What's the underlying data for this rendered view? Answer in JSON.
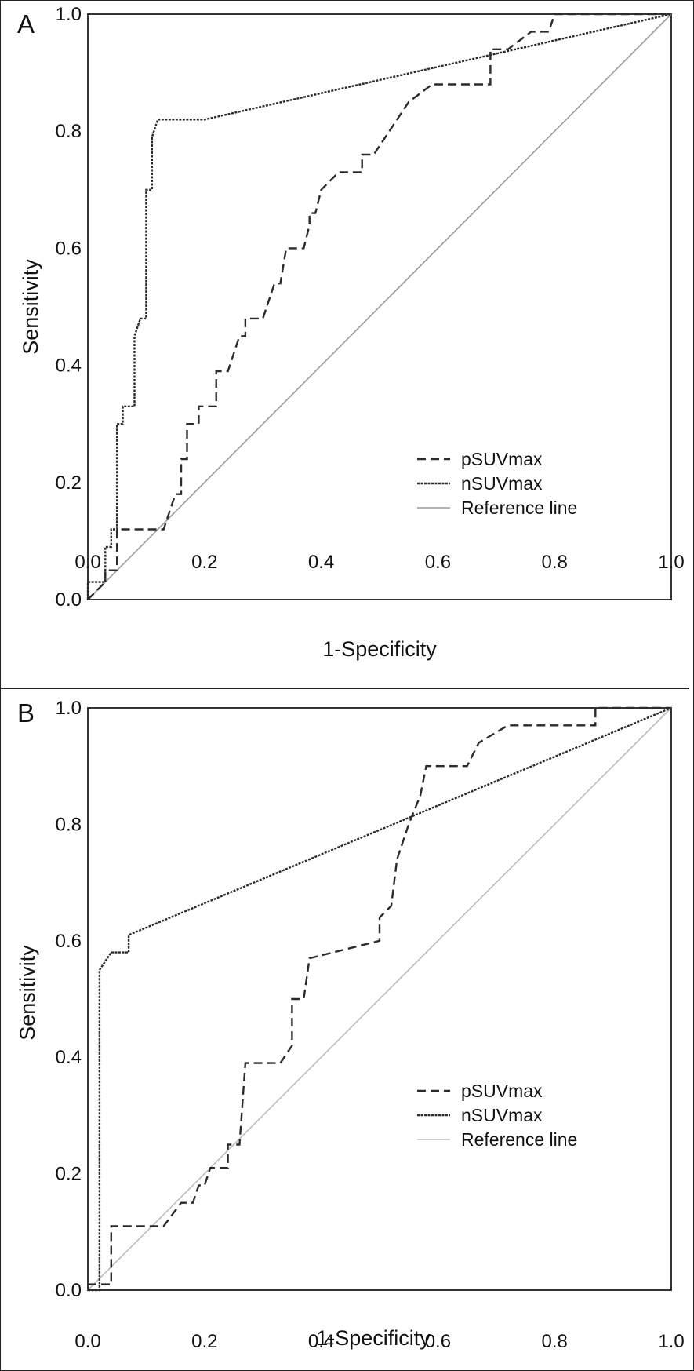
{
  "chart_data": [
    {
      "panel": "A",
      "type": "line",
      "xlabel": "1-Specificity",
      "ylabel": "Sensitivity",
      "xlim": [
        0,
        1
      ],
      "ylim": [
        0,
        1
      ],
      "xticks": [
        "0.0",
        "0.2",
        "0.4",
        "0.6",
        "0.8",
        "1.0"
      ],
      "yticks": [
        "0.0",
        "0.2",
        "0.4",
        "0.6",
        "0.8",
        "1.0"
      ],
      "legend_position": "bottom-right",
      "series": [
        {
          "name": "pSUVmax",
          "style": "dashed",
          "color": "#2b2b2b",
          "points": [
            [
              0,
              0
            ],
            [
              0.03,
              0.03
            ],
            [
              0.03,
              0.05
            ],
            [
              0.05,
              0.05
            ],
            [
              0.05,
              0.12
            ],
            [
              0.13,
              0.12
            ],
            [
              0.15,
              0.18
            ],
            [
              0.16,
              0.18
            ],
            [
              0.16,
              0.24
            ],
            [
              0.17,
              0.24
            ],
            [
              0.17,
              0.3
            ],
            [
              0.19,
              0.3
            ],
            [
              0.19,
              0.33
            ],
            [
              0.22,
              0.33
            ],
            [
              0.22,
              0.39
            ],
            [
              0.24,
              0.39
            ],
            [
              0.26,
              0.45
            ],
            [
              0.27,
              0.45
            ],
            [
              0.27,
              0.48
            ],
            [
              0.3,
              0.48
            ],
            [
              0.32,
              0.54
            ],
            [
              0.33,
              0.54
            ],
            [
              0.34,
              0.6
            ],
            [
              0.37,
              0.6
            ],
            [
              0.38,
              0.64
            ],
            [
              0.38,
              0.66
            ],
            [
              0.39,
              0.66
            ],
            [
              0.4,
              0.7
            ],
            [
              0.43,
              0.73
            ],
            [
              0.47,
              0.73
            ],
            [
              0.47,
              0.76
            ],
            [
              0.49,
              0.76
            ],
            [
              0.55,
              0.85
            ],
            [
              0.59,
              0.88
            ],
            [
              0.69,
              0.88
            ],
            [
              0.69,
              0.94
            ],
            [
              0.72,
              0.94
            ],
            [
              0.76,
              0.97
            ],
            [
              0.79,
              0.97
            ],
            [
              0.8,
              1.0
            ],
            [
              1.0,
              1.0
            ]
          ]
        },
        {
          "name": "nSUVmax",
          "style": "dotted",
          "color": "#2b2b2b",
          "points": [
            [
              0,
              0
            ],
            [
              0,
              0.03
            ],
            [
              0.03,
              0.03
            ],
            [
              0.03,
              0.09
            ],
            [
              0.04,
              0.09
            ],
            [
              0.04,
              0.12
            ],
            [
              0.05,
              0.12
            ],
            [
              0.05,
              0.3
            ],
            [
              0.06,
              0.3
            ],
            [
              0.06,
              0.33
            ],
            [
              0.08,
              0.33
            ],
            [
              0.08,
              0.45
            ],
            [
              0.09,
              0.48
            ],
            [
              0.1,
              0.48
            ],
            [
              0.1,
              0.7
            ],
            [
              0.11,
              0.7
            ],
            [
              0.11,
              0.79
            ],
            [
              0.12,
              0.82
            ],
            [
              0.2,
              0.82
            ],
            [
              1.0,
              1.0
            ]
          ]
        },
        {
          "name": "Reference line",
          "style": "solid",
          "color": "#9a9a9a",
          "points": [
            [
              0,
              0
            ],
            [
              1,
              1
            ]
          ]
        }
      ]
    },
    {
      "panel": "B",
      "type": "line",
      "xlabel": "1-Specificity",
      "ylabel": "Sensitivity",
      "xlim": [
        0,
        1
      ],
      "ylim": [
        0,
        1
      ],
      "xticks": [
        "0.0",
        "0.2",
        "0.4",
        "0.6",
        "0.8",
        "1.0"
      ],
      "yticks": [
        "0.0",
        "0.2",
        "0.4",
        "0.6",
        "0.8",
        "1.0"
      ],
      "legend_position": "bottom-right",
      "series": [
        {
          "name": "pSUVmax",
          "style": "dashed",
          "color": "#2b2b2b",
          "points": [
            [
              0,
              0.01
            ],
            [
              0.04,
              0.01
            ],
            [
              0.04,
              0.11
            ],
            [
              0.13,
              0.11
            ],
            [
              0.16,
              0.15
            ],
            [
              0.18,
              0.15
            ],
            [
              0.19,
              0.18
            ],
            [
              0.2,
              0.18
            ],
            [
              0.21,
              0.21
            ],
            [
              0.24,
              0.21
            ],
            [
              0.24,
              0.25
            ],
            [
              0.26,
              0.25
            ],
            [
              0.27,
              0.39
            ],
            [
              0.33,
              0.39
            ],
            [
              0.35,
              0.42
            ],
            [
              0.35,
              0.5
            ],
            [
              0.37,
              0.5
            ],
            [
              0.38,
              0.57
            ],
            [
              0.5,
              0.6
            ],
            [
              0.5,
              0.64
            ],
            [
              0.52,
              0.66
            ],
            [
              0.53,
              0.74
            ],
            [
              0.55,
              0.8
            ],
            [
              0.57,
              0.85
            ],
            [
              0.58,
              0.9
            ],
            [
              0.65,
              0.9
            ],
            [
              0.67,
              0.94
            ],
            [
              0.72,
              0.97
            ],
            [
              0.87,
              0.97
            ],
            [
              0.87,
              1.0
            ],
            [
              1.0,
              1.0
            ]
          ]
        },
        {
          "name": "nSUVmax",
          "style": "dotted",
          "color": "#2b2b2b",
          "points": [
            [
              0,
              0
            ],
            [
              0.02,
              0
            ],
            [
              0.02,
              0.55
            ],
            [
              0.04,
              0.58
            ],
            [
              0.07,
              0.58
            ],
            [
              0.07,
              0.61
            ],
            [
              1.0,
              1.0
            ]
          ]
        },
        {
          "name": "Reference line",
          "style": "solid",
          "color": "#bdbdbd",
          "points": [
            [
              0,
              0
            ],
            [
              1,
              1
            ]
          ]
        }
      ]
    }
  ],
  "panels": {
    "a": {
      "letter": "A"
    },
    "b": {
      "letter": "B"
    }
  }
}
